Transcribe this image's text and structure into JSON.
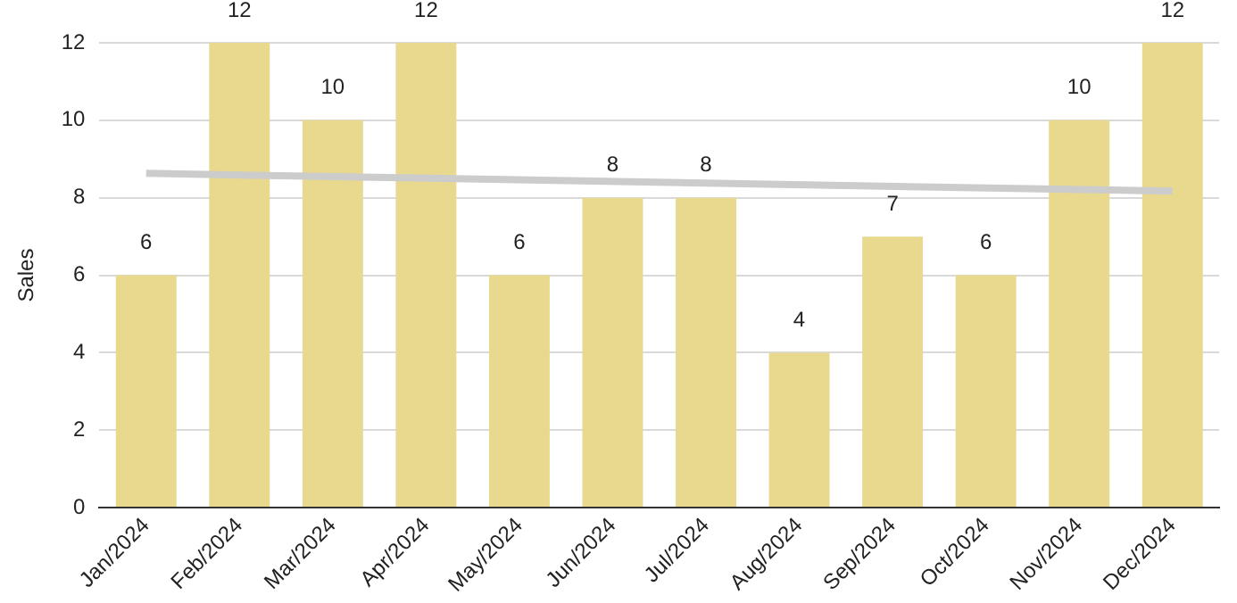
{
  "chart_data": {
    "type": "bar",
    "ylabel": "Sales",
    "categories": [
      "Jan/2024",
      "Feb/2024",
      "Mar/2024",
      "Apr/2024",
      "May/2024",
      "Jun/2024",
      "Jul/2024",
      "Aug/2024",
      "Sep/2024",
      "Oct/2024",
      "Nov/2024",
      "Dec/2024"
    ],
    "series": [
      {
        "color": "#e8d98f",
        "values": [
          6,
          12,
          10,
          12,
          6,
          8,
          8,
          4,
          7,
          6,
          10,
          12
        ],
        "value_labels": [
          "6",
          "12",
          "10",
          "12",
          "6",
          "8",
          "8",
          "4",
          "7",
          "6",
          "10",
          "12"
        ]
      },
      {
        "type": "line",
        "color": "#cccccc",
        "x": [
          "Jan/2024",
          "Dec/2024"
        ],
        "values": [
          8.63,
          8.17
        ]
      }
    ],
    "ylim": [
      0,
      12
    ],
    "yticks": [
      0,
      2,
      4,
      6,
      8,
      10,
      12
    ],
    "grid": "y",
    "legend": false,
    "marker": "none"
  }
}
